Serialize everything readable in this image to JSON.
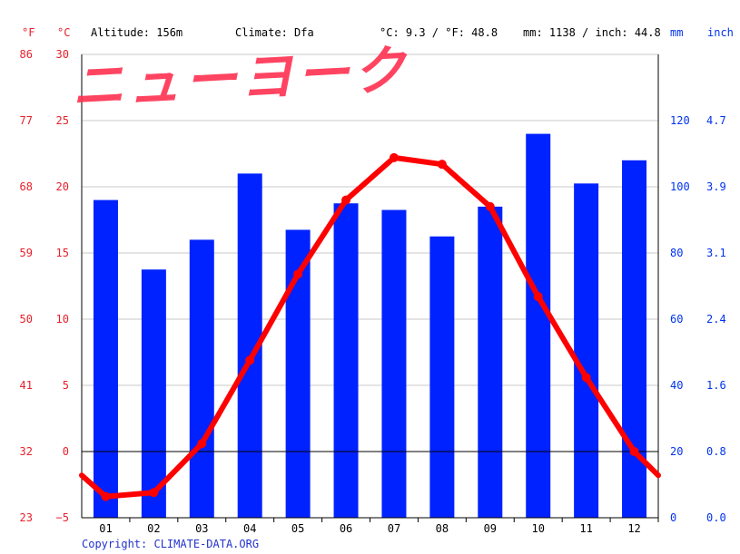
{
  "header": {
    "altitude": "Altitude: 156m",
    "climate": "Climate: Dfa",
    "temp_avg": "°C: 9.3 / °F: 48.8",
    "precip_total": "mm: 1138 / inch: 44.8"
  },
  "overlay_title": "ニューヨーク",
  "copyright": "Copyright: CLIMATE-DATA.ORG",
  "colors": {
    "temperature": "#ff0000",
    "precipitation": "#0022ff",
    "temp_axis_text": "#e8202a",
    "precip_axis_text": "#0033ee",
    "grid": "#c8c8c8",
    "overlay_text": "#ff3050"
  },
  "chart_data": {
    "type": "bar+line",
    "categories": [
      "01",
      "02",
      "03",
      "04",
      "05",
      "06",
      "07",
      "08",
      "09",
      "10",
      "11",
      "12"
    ],
    "series": [
      {
        "type": "bar",
        "axis": "right",
        "values": [
          96,
          75,
          84,
          104,
          87,
          95,
          93,
          85,
          94,
          116,
          101,
          108
        ]
      },
      {
        "type": "line",
        "axis": "left",
        "values": [
          -3.4,
          -3.1,
          0.6,
          6.9,
          13.4,
          19.0,
          22.2,
          21.7,
          18.5,
          11.7,
          5.6,
          0.0
        ]
      }
    ],
    "line_edges": [
      -1.8,
      -1.8
    ],
    "axes": {
      "left_celsius": {
        "label": "°C",
        "ticks": [
          "30",
          "25",
          "20",
          "15",
          "10",
          "5",
          "0",
          "−5"
        ],
        "ylim": [
          -5,
          30
        ]
      },
      "left_fahrenheit": {
        "label": "°F",
        "ticks": [
          "86",
          "77",
          "68",
          "59",
          "50",
          "41",
          "32",
          "23"
        ]
      },
      "right_mm": {
        "label": "mm",
        "ticks": [
          "120",
          "100",
          "80",
          "60",
          "40",
          "20",
          "0"
        ],
        "ylim": [
          0,
          140
        ]
      },
      "right_inch": {
        "label": "inch",
        "ticks": [
          "4.7",
          "3.9",
          "3.1",
          "2.4",
          "1.6",
          "0.8",
          "0.0"
        ]
      }
    },
    "grid": true
  }
}
